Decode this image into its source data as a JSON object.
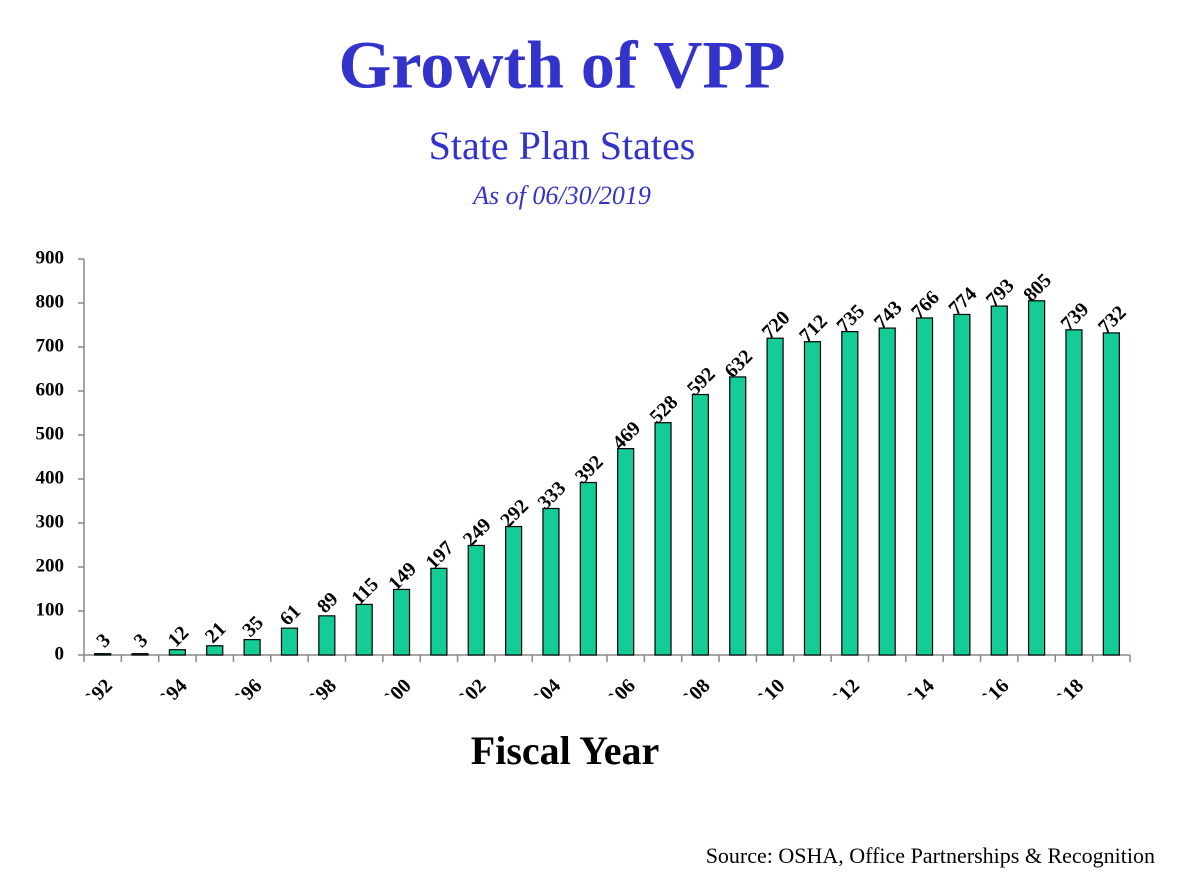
{
  "chart_data": {
    "type": "bar",
    "title": "Growth of VPP",
    "subtitle": "State Plan States",
    "note": "As of 06/30/2019",
    "x_label": "Fiscal Year",
    "source": "Source: OSHA, Office Partnerships & Recognition",
    "categories": [
      "`92",
      null,
      "`94",
      null,
      "`96",
      null,
      "`98",
      null,
      "`00",
      null,
      "`02",
      null,
      "`04",
      null,
      "`06",
      null,
      "`08",
      null,
      "`10",
      null,
      "`12",
      null,
      "`14",
      null,
      "`16",
      null,
      "`18",
      null
    ],
    "values": [
      3,
      3,
      12,
      21,
      35,
      61,
      89,
      115,
      149,
      197,
      249,
      292,
      333,
      392,
      469,
      528,
      592,
      632,
      720,
      712,
      735,
      743,
      766,
      774,
      793,
      805,
      739,
      732
    ],
    "color": "#14cc96",
    "ylim": [
      0,
      900
    ],
    "yticks": [
      0,
      100,
      200,
      300,
      400,
      500,
      600,
      700,
      800,
      900
    ],
    "grid": false
  }
}
